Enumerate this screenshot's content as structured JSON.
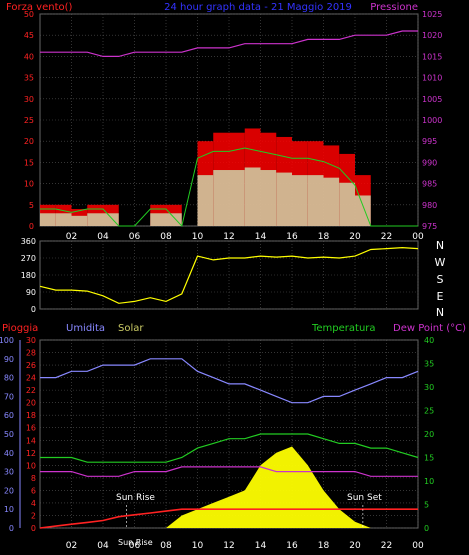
{
  "title": "24 hour graph data - 21 Maggio 2019",
  "top_panel": {
    "left_label": "Forza vento()",
    "right_label": "Pressione",
    "left_ticks": [
      "50",
      "45",
      "40",
      "35",
      "30",
      "25",
      "20",
      "15",
      "10",
      "5",
      "0"
    ],
    "right_ticks": [
      "1025",
      "1020",
      "1015",
      "1010",
      "1005",
      "1000",
      "995",
      "990",
      "985",
      "980",
      "975"
    ]
  },
  "mid_panel": {
    "left_ticks": [
      "360",
      "270",
      "180",
      "90",
      "0"
    ],
    "compass": [
      "N",
      "W",
      "S",
      "E",
      "N"
    ]
  },
  "bottom_panel": {
    "labels": {
      "rain": "Pioggia",
      "humidity": "Umidita",
      "solar": "Solar",
      "temperature": "Temperatura",
      "dewpoint": "Dew Point (°C)"
    },
    "rain_ticks": [
      "100",
      "90",
      "80",
      "70",
      "60",
      "50",
      "40",
      "30",
      "20",
      "10",
      "0"
    ],
    "humidity_ticks": [
      "30",
      "28",
      "26",
      "24",
      "22",
      "20",
      "18",
      "16",
      "14",
      "12",
      "10",
      "8",
      "6",
      "4",
      "2",
      "0"
    ],
    "temp_ticks": [
      "40",
      "35",
      "30",
      "25",
      "20",
      "15",
      "10",
      "5",
      "0"
    ],
    "annotations": {
      "sunrise": "Sun Rise",
      "solarnoon": "Sun Rise",
      "sunset": "Sun Set"
    }
  },
  "x_ticks": [
    "02",
    "04",
    "06",
    "08",
    "10",
    "12",
    "14",
    "16",
    "18",
    "20",
    "22",
    "00"
  ],
  "colors": {
    "wind_gust": "#ff0000",
    "wind_avg": "#22cc22",
    "wind_low": "#ccffcc",
    "pressure": "#cc33cc",
    "direction": "#ffff00",
    "humidity": "#8888ff",
    "temperature": "#22cc22",
    "dewpoint": "#cc33cc",
    "solar": "#ffff00",
    "rain": "#ff2222",
    "grid": "#555555",
    "title": "#3333ff"
  },
  "chart_data": [
    {
      "type": "line",
      "name": "wind and pressure",
      "x_unit": "hours",
      "x": [
        0,
        1,
        2,
        3,
        4,
        5,
        6,
        7,
        8,
        9,
        10,
        11,
        12,
        13,
        14,
        15,
        16,
        17,
        18,
        19,
        20,
        21,
        22,
        23,
        24
      ],
      "series": [
        {
          "name": "Forza vento",
          "axis": "left",
          "values": [
            5,
            5,
            4,
            5,
            5,
            0,
            0,
            5,
            5,
            0,
            20,
            22,
            22,
            23,
            22,
            21,
            20,
            20,
            19,
            17,
            12,
            0,
            0,
            0,
            0
          ]
        },
        {
          "name": "Pressione",
          "axis": "right",
          "values": [
            1016,
            1016,
            1016,
            1016,
            1015,
            1015,
            1016,
            1016,
            1016,
            1016,
            1017,
            1017,
            1017,
            1018,
            1018,
            1018,
            1018,
            1019,
            1019,
            1019,
            1020,
            1020,
            1020,
            1021,
            1021
          ]
        }
      ],
      "ylim_left": [
        0,
        50
      ],
      "ylim_right": [
        975,
        1025
      ]
    },
    {
      "type": "line",
      "name": "wind direction",
      "x_unit": "hours",
      "x": [
        0,
        1,
        2,
        3,
        4,
        5,
        6,
        7,
        8,
        9,
        10,
        11,
        12,
        13,
        14,
        15,
        16,
        17,
        18,
        19,
        20,
        21,
        22,
        23,
        24
      ],
      "series": [
        {
          "name": "direction",
          "values": [
            120,
            100,
            100,
            95,
            70,
            30,
            40,
            60,
            40,
            80,
            280,
            260,
            270,
            270,
            280,
            275,
            280,
            270,
            275,
            270,
            280,
            315,
            320,
            325,
            320
          ]
        }
      ],
      "ylim": [
        0,
        360
      ]
    },
    {
      "type": "line",
      "name": "rain humidity temperature solar",
      "x_unit": "hours",
      "x": [
        0,
        1,
        2,
        3,
        4,
        5,
        6,
        7,
        8,
        9,
        10,
        11,
        12,
        13,
        14,
        15,
        16,
        17,
        18,
        19,
        20,
        21,
        22,
        23,
        24
      ],
      "series": [
        {
          "name": "Umidita",
          "axis": "humidity",
          "values": [
            24,
            24,
            25,
            25,
            26,
            26,
            26,
            27,
            27,
            27,
            25,
            24,
            23,
            23,
            22,
            21,
            20,
            20,
            21,
            21,
            22,
            23,
            24,
            24,
            25
          ]
        },
        {
          "name": "Temperatura",
          "axis": "temperature",
          "values": [
            15,
            15,
            15,
            14,
            14,
            14,
            14,
            14,
            14,
            15,
            17,
            18,
            19,
            19,
            20,
            20,
            20,
            20,
            19,
            18,
            18,
            17,
            17,
            16,
            15
          ]
        },
        {
          "name": "Dew Point",
          "axis": "temperature",
          "values": [
            12,
            12,
            12,
            11,
            11,
            11,
            12,
            12,
            12,
            13,
            13,
            13,
            13,
            13,
            13,
            12,
            12,
            12,
            12,
            12,
            12,
            11,
            11,
            11,
            11
          ]
        },
        {
          "name": "Solar",
          "axis": "humidity",
          "values": [
            0,
            0,
            0,
            0,
            0,
            0,
            0,
            0,
            0,
            2,
            3,
            4,
            5,
            6,
            10,
            12,
            13,
            10,
            6,
            3,
            1,
            0,
            0,
            0,
            0
          ]
        },
        {
          "name": "Pioggia",
          "axis": "rain",
          "values": [
            0,
            1,
            2,
            3,
            4,
            6,
            7,
            8,
            9,
            10,
            10,
            10,
            10,
            10,
            10,
            10,
            10,
            10,
            10,
            10,
            10,
            10,
            10,
            10,
            10
          ]
        }
      ],
      "ylim_rain": [
        0,
        100
      ],
      "ylim_humidity": [
        0,
        30
      ],
      "ylim_temperature": [
        0,
        40
      ]
    }
  ]
}
